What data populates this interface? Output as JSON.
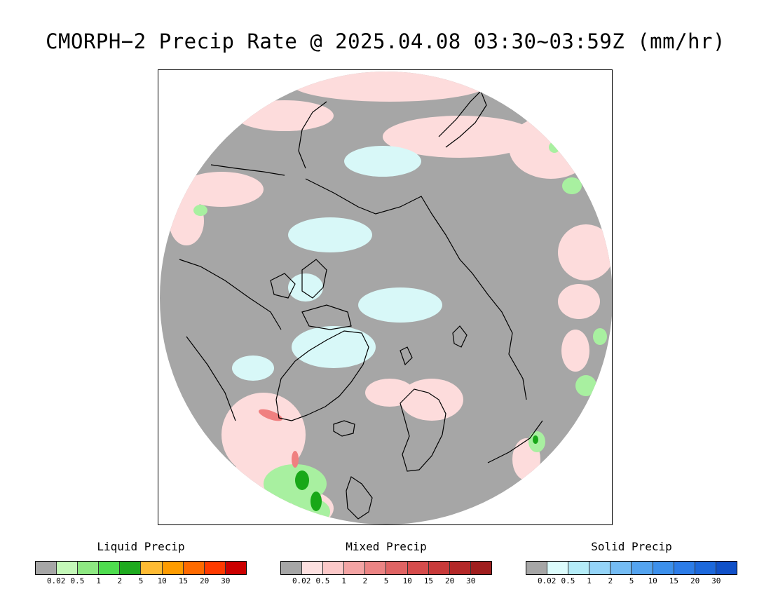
{
  "title": "CMORPH−2 Precip Rate @ 2025.04.08 03:30~03:59Z (mm/hr)",
  "colors": {
    "no_precip": "#a6a6a6",
    "light_pink": "#fddcdc",
    "light_cyan": "#d8f8f8",
    "light_green": "#a8f0a0",
    "green": "#48d848",
    "dark_green": "#18a818",
    "red_band": "#f08080",
    "coastline": "#000000"
  },
  "legends": [
    {
      "name": "liquid",
      "title": "Liquid Precip",
      "colors": [
        "#a6a6a6",
        "#c4f8b8",
        "#8ee882",
        "#4edd4e",
        "#1eaa1e",
        "#ffbb33",
        "#ff9c00",
        "#ff6a00",
        "#ff3a00",
        "#cc0000"
      ],
      "ticks": [
        "0.02",
        "0.5",
        "1",
        "2",
        "5",
        "10",
        "15",
        "20",
        "30"
      ]
    },
    {
      "name": "mixed",
      "title": "Mixed Precip",
      "colors": [
        "#a6a6a6",
        "#fde0e0",
        "#fcc8c8",
        "#f4a4a4",
        "#ec8484",
        "#e06464",
        "#d64c4c",
        "#c83a3a",
        "#b42828",
        "#a01e1e"
      ],
      "ticks": [
        "0.02",
        "0.5",
        "1",
        "2",
        "5",
        "10",
        "15",
        "20",
        "30"
      ]
    },
    {
      "name": "solid",
      "title": "Solid Precip",
      "colors": [
        "#a6a6a6",
        "#dcfcfc",
        "#b4ecf8",
        "#94d4f8",
        "#74bcf4",
        "#54a4f0",
        "#3c90ec",
        "#2c7ce8",
        "#1c68dc",
        "#1050c8"
      ],
      "ticks": [
        "0.02",
        "0.5",
        "1",
        "2",
        "5",
        "10",
        "15",
        "20",
        "30"
      ]
    }
  ]
}
